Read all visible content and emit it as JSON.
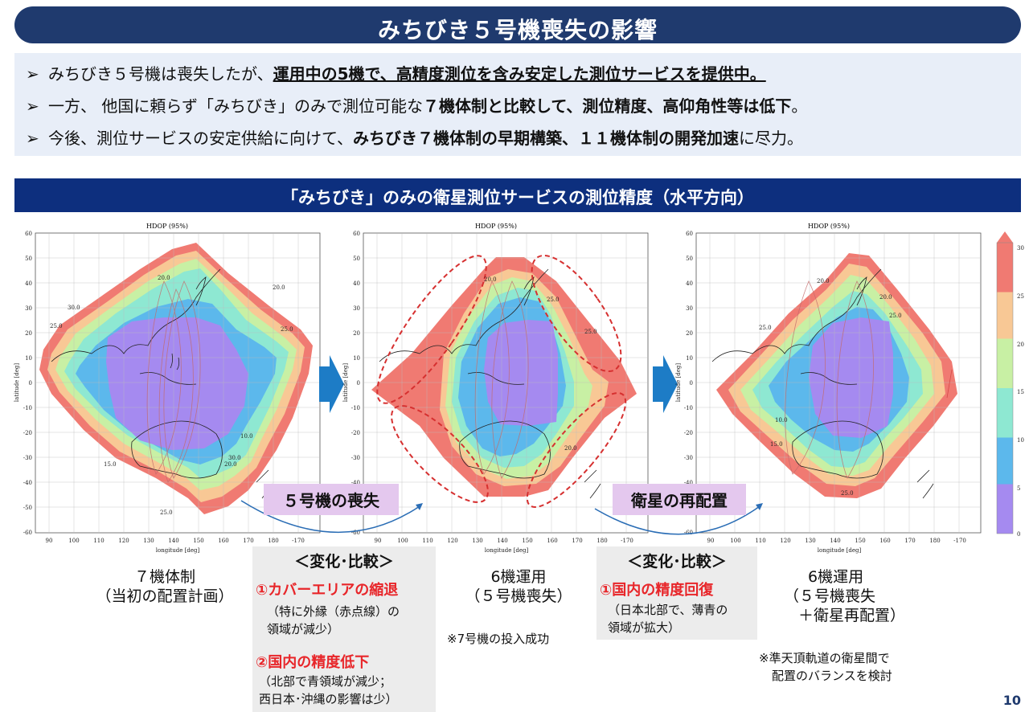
{
  "title": "みちびき５号機喪失の影響",
  "bullets": [
    {
      "mark": "➢",
      "pre": "みちびき５号機は喪失したが、",
      "bold": "運用中の5機で、高精度測位を含み安定した測位サービスを提供中。",
      "post": ""
    },
    {
      "mark": "➢",
      "pre": "一方、 他国に頼らず「みちびき」のみで測位可能な",
      "bold": "７機体制と比較して、測位精度、高仰角性等は低下",
      "post": "。"
    },
    {
      "mark": "➢",
      "pre": "今後、測位サービスの安定供給に向けて、",
      "bold": "みちびき７機体制の早期構築、１１機体制の開発加速",
      "post": "に尽力。"
    }
  ],
  "section_title": "「みちびき」のみの衛星測位サービスの測位精度（水平方向）",
  "map_title": "HDOP (95%)",
  "axis": {
    "xlabel": "longitude [deg]",
    "ylabel": "latitude [deg]",
    "x_ticks": [
      "90",
      "100",
      "110",
      "120",
      "130",
      "140",
      "150",
      "160",
      "170",
      "180",
      "-170"
    ],
    "y_ticks": [
      "60",
      "50",
      "40",
      "30",
      "20",
      "10",
      "0",
      "-10",
      "-20",
      "-30",
      "-40",
      "-50",
      "-60"
    ]
  },
  "colorbar_ticks": [
    "30",
    "25",
    "20",
    "15",
    "10",
    "5",
    "0"
  ],
  "colors": {
    "purple": "#a58af0",
    "blue": "#5cb8ec",
    "cyan": "#8ee8d2",
    "green": "#c8f0a4",
    "orange": "#f8c895",
    "red": "#f07a72",
    "title_bar": "#1f3a6e",
    "section_bar": "#0d2f7e",
    "accent_red": "#e8262a",
    "tag_bg": "#e4c8ee"
  },
  "maps": [
    {
      "contours": [
        "20.0",
        "30.0",
        "25.0",
        "20.0",
        "25.0",
        "15.0",
        "10.0",
        "20.0",
        "25.0",
        "30.0"
      ]
    },
    {
      "contours": [
        "20.0",
        "25.0",
        "20.0",
        "25.0"
      ]
    },
    {
      "contours": [
        "20.0",
        "25.0",
        "20.0",
        "25.0",
        "10.0",
        "15.0",
        "25.0"
      ]
    }
  ],
  "tags": {
    "loss": "５号機の喪失",
    "relocation": "衛星の再配置"
  },
  "compare1": {
    "head": "＜変化･比較＞",
    "item1_head": "①カバーエリアの縮退",
    "item1_body": [
      "（特に外縁（赤点線）の",
      "領域が減少）"
    ],
    "item2_head": "②国内の精度低下",
    "item2_body": [
      "（北部で青領域が減少；",
      "西日本･沖縄の影響は少）"
    ]
  },
  "compare2": {
    "head": "＜変化･比較＞",
    "item1_head": "①国内の精度回復",
    "item1_body": [
      "（日本北部で、薄青の",
      "領域が拡大）"
    ]
  },
  "configs": [
    {
      "lines": [
        "７機体制",
        "（当初の配置計画）"
      ]
    },
    {
      "lines": [
        "6機運用",
        "（５号機喪失）"
      ]
    },
    {
      "lines": [
        "6機運用",
        "（５号機喪失",
        "　　＋衛星再配置）"
      ]
    }
  ],
  "note_launch": "※7号機の投入成功",
  "note_balance": [
    "※準天頂軌道の衛星間で",
    "配置のバランスを検討"
  ],
  "page_number": "10"
}
